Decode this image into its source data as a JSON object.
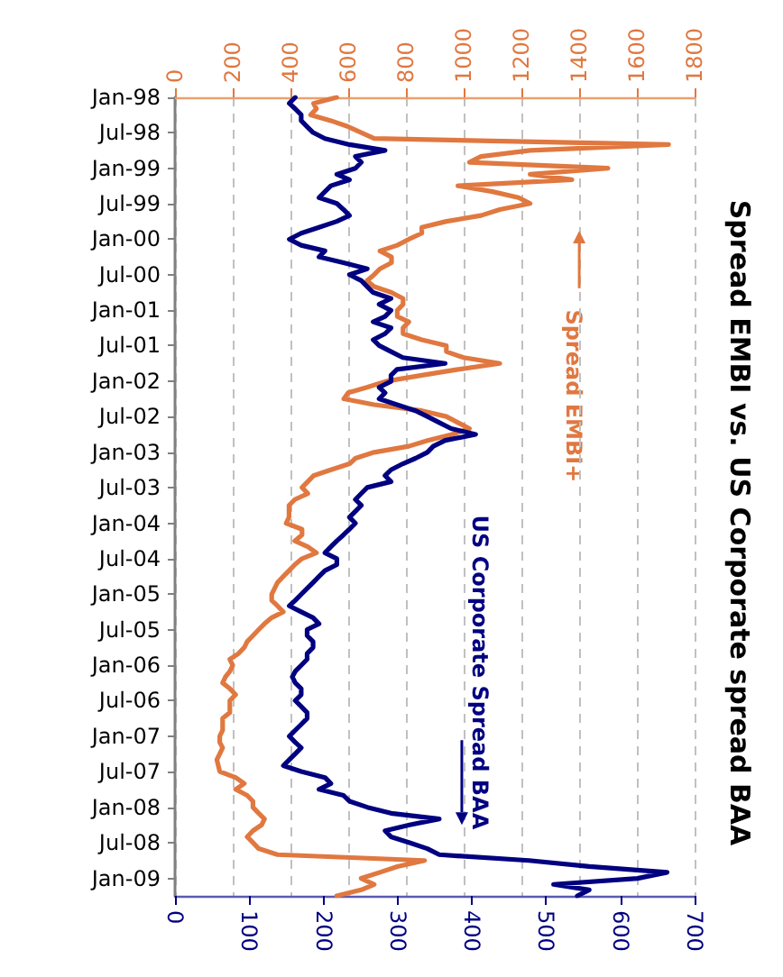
{
  "chart_data": {
    "type": "line",
    "title": "Spread EMBI vs. US Corporate spread BAA",
    "orientation": "horizontal",
    "x": [
      "1998-01",
      "1998-02",
      "1998-03",
      "1998-04",
      "1998-05",
      "1998-06",
      "1998-07",
      "1998-08",
      "1998-09",
      "1998-10",
      "1998-11",
      "1998-12",
      "1999-01",
      "1999-02",
      "1999-03",
      "1999-04",
      "1999-05",
      "1999-06",
      "1999-07",
      "1999-08",
      "1999-09",
      "1999-10",
      "1999-11",
      "1999-12",
      "2000-01",
      "2000-02",
      "2000-03",
      "2000-04",
      "2000-05",
      "2000-06",
      "2000-07",
      "2000-08",
      "2000-09",
      "2000-10",
      "2000-11",
      "2000-12",
      "2001-01",
      "2001-02",
      "2001-03",
      "2001-04",
      "2001-05",
      "2001-06",
      "2001-07",
      "2001-08",
      "2001-09",
      "2001-10",
      "2001-11",
      "2001-12",
      "2002-01",
      "2002-02",
      "2002-03",
      "2002-04",
      "2002-05",
      "2002-06",
      "2002-07",
      "2002-08",
      "2002-09",
      "2002-10",
      "2002-11",
      "2002-12",
      "2003-01",
      "2003-02",
      "2003-03",
      "2003-04",
      "2003-05",
      "2003-06",
      "2003-07",
      "2003-08",
      "2003-09",
      "2003-10",
      "2003-11",
      "2003-12",
      "2004-01",
      "2004-02",
      "2004-03",
      "2004-04",
      "2004-05",
      "2004-06",
      "2004-07",
      "2004-08",
      "2004-09",
      "2004-10",
      "2004-11",
      "2004-12",
      "2005-01",
      "2005-02",
      "2005-03",
      "2005-04",
      "2005-05",
      "2005-06",
      "2005-07",
      "2005-08",
      "2005-09",
      "2005-10",
      "2005-11",
      "2005-12",
      "2006-01",
      "2006-02",
      "2006-03",
      "2006-04",
      "2006-05",
      "2006-06",
      "2006-07",
      "2006-08",
      "2006-09",
      "2006-10",
      "2006-11",
      "2006-12",
      "2007-01",
      "2007-02",
      "2007-03",
      "2007-04",
      "2007-05",
      "2007-06",
      "2007-07",
      "2007-08",
      "2007-09",
      "2007-10",
      "2007-11",
      "2007-12",
      "2008-01",
      "2008-02",
      "2008-03",
      "2008-04",
      "2008-05",
      "2008-06",
      "2008-07",
      "2008-08",
      "2008-09",
      "2008-10",
      "2008-11",
      "2008-12",
      "2009-01",
      "2009-02",
      "2009-03",
      "2009-04"
    ],
    "series": [
      {
        "name": "Spread EMBI+",
        "color": "#e07840",
        "axis": "x2",
        "values": [
          560,
          480,
          490,
          470,
          540,
          600,
          645,
          690,
          1710,
          1230,
          1060,
          1020,
          1500,
          1230,
          1375,
          980,
          1100,
          1190,
          1230,
          1125,
          1060,
          940,
          855,
          855,
          810,
          770,
          710,
          750,
          750,
          710,
          690,
          665,
          690,
          750,
          790,
          790,
          770,
          770,
          810,
          790,
          790,
          855,
          940,
          940,
          1000,
          1125,
          980,
          855,
          730,
          665,
          600,
          585,
          690,
          855,
          940,
          980,
          1020,
          960,
          875,
          810,
          690,
          625,
          605,
          540,
          480,
          460,
          440,
          460,
          415,
          395,
          395,
          395,
          385,
          440,
          440,
          415,
          460,
          490,
          440,
          415,
          395,
          375,
          355,
          345,
          335,
          335,
          355,
          375,
          335,
          310,
          290,
          270,
          250,
          240,
          220,
          190,
          200,
          190,
          175,
          165,
          190,
          210,
          190,
          190,
          190,
          165,
          165,
          165,
          155,
          155,
          165,
          155,
          145,
          150,
          155,
          210,
          240,
          210,
          250,
          270,
          270,
          290,
          310,
          300,
          270,
          250,
          270,
          290,
          355,
          865,
          770,
          710,
          645,
          690,
          645,
          560
        ]
      },
      {
        "name": "US Corporate Spread BAA",
        "color": "#000080",
        "values": [
          162,
          154,
          162,
          170,
          170,
          178,
          186,
          202,
          235,
          283,
          243,
          251,
          243,
          218,
          235,
          210,
          202,
          194,
          218,
          227,
          235,
          218,
          194,
          170,
          154,
          170,
          202,
          194,
          227,
          259,
          235,
          251,
          259,
          267,
          291,
          275,
          291,
          283,
          267,
          291,
          283,
          267,
          275,
          291,
          307,
          364,
          299,
          291,
          291,
          275,
          283,
          275,
          299,
          324,
          340,
          356,
          372,
          405,
          364,
          348,
          340,
          324,
          307,
          291,
          283,
          291,
          259,
          251,
          243,
          251,
          243,
          235,
          243,
          235,
          227,
          218,
          210,
          202,
          218,
          218,
          202,
          194,
          186,
          178,
          170,
          162,
          154,
          170,
          186,
          194,
          178,
          178,
          186,
          186,
          178,
          178,
          170,
          162,
          158,
          162,
          170,
          170,
          162,
          170,
          178,
          178,
          170,
          162,
          154,
          162,
          170,
          162,
          154,
          146,
          170,
          202,
          210,
          194,
          227,
          235,
          259,
          291,
          356,
          316,
          283,
          291,
          316,
          340,
          356,
          477,
          558,
          663,
          623,
          510,
          558,
          542
        ]
      }
    ],
    "ylim": [
      "2009-04",
      "1998-01"
    ],
    "yticks": [
      {
        "value": "1998-01",
        "label": "Jan-98"
      },
      {
        "value": "1998-07",
        "label": "Jul-98"
      },
      {
        "value": "1999-01",
        "label": "Jan-99"
      },
      {
        "value": "1999-07",
        "label": "Jul-99"
      },
      {
        "value": "2000-01",
        "label": "Jan-00"
      },
      {
        "value": "2000-07",
        "label": "Jul-00"
      },
      {
        "value": "2001-01",
        "label": "Jan-01"
      },
      {
        "value": "2001-07",
        "label": "Jul-01"
      },
      {
        "value": "2002-01",
        "label": "Jan-02"
      },
      {
        "value": "2002-07",
        "label": "Jul-02"
      },
      {
        "value": "2003-01",
        "label": "Jan-03"
      },
      {
        "value": "2003-07",
        "label": "Jul-03"
      },
      {
        "value": "2004-01",
        "label": "Jan-04"
      },
      {
        "value": "2004-07",
        "label": "Jul-04"
      },
      {
        "value": "2005-01",
        "label": "Jan-05"
      },
      {
        "value": "2005-07",
        "label": "Jul-05"
      },
      {
        "value": "2006-01",
        "label": "Jan-06"
      },
      {
        "value": "2006-07",
        "label": "Jul-06"
      },
      {
        "value": "2007-01",
        "label": "Jan-07"
      },
      {
        "value": "2007-07",
        "label": "Jul-07"
      },
      {
        "value": "2008-01",
        "label": "Jan-08"
      },
      {
        "value": "2008-07",
        "label": "Jul-08"
      },
      {
        "value": "2009-01",
        "label": "Jan-09"
      }
    ],
    "xlim": [
      0,
      700
    ],
    "xticks": [
      0,
      100,
      200,
      300,
      400,
      500,
      600,
      700
    ],
    "x2lim": [
      0,
      1800
    ],
    "x2ticks": [
      0,
      200,
      400,
      600,
      800,
      1000,
      1200,
      1400,
      1600,
      1800
    ],
    "grid": "x"
  }
}
